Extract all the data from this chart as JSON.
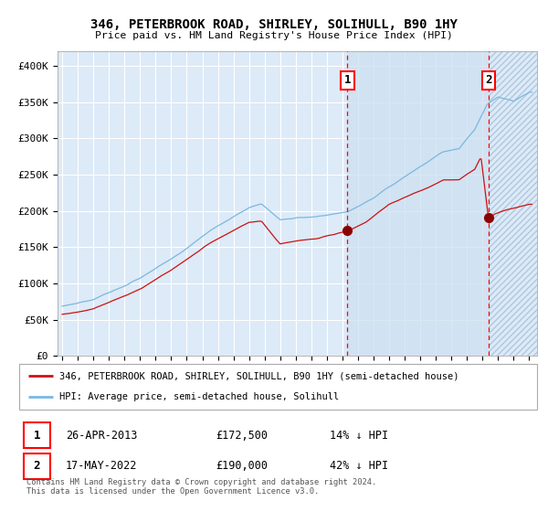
{
  "title": "346, PETERBROOK ROAD, SHIRLEY, SOLIHULL, B90 1HY",
  "subtitle": "Price paid vs. HM Land Registry's House Price Index (HPI)",
  "ylim": [
    0,
    420000
  ],
  "yticks": [
    0,
    50000,
    100000,
    150000,
    200000,
    250000,
    300000,
    350000,
    400000
  ],
  "xlim_start": 1994.7,
  "xlim_end": 2025.5,
  "plot_bg_color": "#ddeaf7",
  "grid_color": "#ffffff",
  "hpi_color": "#7ab8e0",
  "price_color": "#cc1111",
  "dark_red": "#8b0000",
  "sale1_date_x": 2013.32,
  "sale1_price": 172500,
  "sale2_date_x": 2022.38,
  "sale2_price": 190000,
  "legend_label1": "346, PETERBROOK ROAD, SHIRLEY, SOLIHULL, B90 1HY (semi-detached house)",
  "legend_label2": "HPI: Average price, semi-detached house, Solihull",
  "annotation1_date": "26-APR-2013",
  "annotation1_price": "£172,500",
  "annotation1_pct": "14% ↓ HPI",
  "annotation2_date": "17-MAY-2022",
  "annotation2_price": "£190,000",
  "annotation2_pct": "42% ↓ HPI",
  "footer": "Contains HM Land Registry data © Crown copyright and database right 2024.\nThis data is licensed under the Open Government Licence v3.0."
}
